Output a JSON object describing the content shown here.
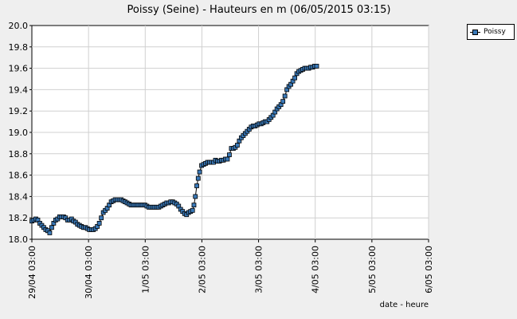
{
  "chart_data": {
    "type": "line",
    "title": "Poissy (Seine) - Hauteurs en m (06/05/2015 03:15)",
    "xlabel": "date - heure",
    "ylabel": "",
    "ylim": [
      18.0,
      20.0
    ],
    "y_ticks": [
      "18.0",
      "18.2",
      "18.4",
      "18.6",
      "18.8",
      "19.0",
      "19.2",
      "19.4",
      "19.6",
      "19.8",
      "20.0"
    ],
    "x_ticks": [
      "29/04 03:00",
      "30/04 03:00",
      "1/05 03:00",
      "2/05 03:00",
      "3/05 03:00",
      "4/05 03:00",
      "5/05 03:00",
      "6/05 03:00"
    ],
    "x_unit": "days since 29/04 03:00",
    "xlim": [
      0,
      7
    ],
    "grid": true,
    "legend_position": "top-right",
    "series_color": "#3a79b8",
    "series": [
      {
        "name": "Poissy",
        "points": [
          [
            0.0,
            18.17
          ],
          [
            0.035,
            18.18
          ],
          [
            0.07,
            18.19
          ],
          [
            0.105,
            18.18
          ],
          [
            0.14,
            18.15
          ],
          [
            0.175,
            18.13
          ],
          [
            0.21,
            18.11
          ],
          [
            0.245,
            18.09
          ],
          [
            0.28,
            18.08
          ],
          [
            0.315,
            18.06
          ],
          [
            0.35,
            18.11
          ],
          [
            0.385,
            18.15
          ],
          [
            0.42,
            18.18
          ],
          [
            0.455,
            18.19
          ],
          [
            0.49,
            18.21
          ],
          [
            0.525,
            18.21
          ],
          [
            0.56,
            18.21
          ],
          [
            0.595,
            18.2
          ],
          [
            0.63,
            18.18
          ],
          [
            0.665,
            18.18
          ],
          [
            0.7,
            18.19
          ],
          [
            0.735,
            18.17
          ],
          [
            0.77,
            18.16
          ],
          [
            0.805,
            18.14
          ],
          [
            0.84,
            18.13
          ],
          [
            0.875,
            18.12
          ],
          [
            0.91,
            18.11
          ],
          [
            0.945,
            18.11
          ],
          [
            0.98,
            18.1
          ],
          [
            1.015,
            18.09
          ],
          [
            1.05,
            18.09
          ],
          [
            1.085,
            18.09
          ],
          [
            1.12,
            18.1
          ],
          [
            1.155,
            18.12
          ],
          [
            1.19,
            18.15
          ],
          [
            1.225,
            18.2
          ],
          [
            1.26,
            18.25
          ],
          [
            1.295,
            18.27
          ],
          [
            1.33,
            18.29
          ],
          [
            1.365,
            18.32
          ],
          [
            1.4,
            18.35
          ],
          [
            1.435,
            18.36
          ],
          [
            1.47,
            18.37
          ],
          [
            1.505,
            18.37
          ],
          [
            1.54,
            18.37
          ],
          [
            1.575,
            18.37
          ],
          [
            1.61,
            18.36
          ],
          [
            1.645,
            18.35
          ],
          [
            1.68,
            18.34
          ],
          [
            1.715,
            18.33
          ],
          [
            1.75,
            18.32
          ],
          [
            1.785,
            18.32
          ],
          [
            1.82,
            18.32
          ],
          [
            1.855,
            18.32
          ],
          [
            1.89,
            18.32
          ],
          [
            1.925,
            18.32
          ],
          [
            1.96,
            18.32
          ],
          [
            1.995,
            18.32
          ],
          [
            2.03,
            18.31
          ],
          [
            2.065,
            18.3
          ],
          [
            2.1,
            18.3
          ],
          [
            2.135,
            18.3
          ],
          [
            2.17,
            18.3
          ],
          [
            2.205,
            18.3
          ],
          [
            2.24,
            18.3
          ],
          [
            2.275,
            18.31
          ],
          [
            2.31,
            18.32
          ],
          [
            2.345,
            18.33
          ],
          [
            2.38,
            18.34
          ],
          [
            2.415,
            18.34
          ],
          [
            2.45,
            18.35
          ],
          [
            2.485,
            18.35
          ],
          [
            2.52,
            18.34
          ],
          [
            2.555,
            18.33
          ],
          [
            2.59,
            18.31
          ],
          [
            2.625,
            18.28
          ],
          [
            2.66,
            18.26
          ],
          [
            2.695,
            18.24
          ],
          [
            2.73,
            18.23
          ],
          [
            2.765,
            18.25
          ],
          [
            2.8,
            18.26
          ],
          [
            2.835,
            18.27
          ],
          [
            2.86,
            18.32
          ],
          [
            2.885,
            18.4
          ],
          [
            2.91,
            18.5
          ],
          [
            2.935,
            18.57
          ],
          [
            2.96,
            18.63
          ],
          [
            2.995,
            18.69
          ],
          [
            3.03,
            18.7
          ],
          [
            3.065,
            18.71
          ],
          [
            3.1,
            18.72
          ],
          [
            3.135,
            18.72
          ],
          [
            3.17,
            18.72
          ],
          [
            3.205,
            18.72
          ],
          [
            3.24,
            18.74
          ],
          [
            3.275,
            18.73
          ],
          [
            3.31,
            18.73
          ],
          [
            3.345,
            18.74
          ],
          [
            3.38,
            18.74
          ],
          [
            3.415,
            18.75
          ],
          [
            3.45,
            18.75
          ],
          [
            3.485,
            18.79
          ],
          [
            3.52,
            18.85
          ],
          [
            3.555,
            18.85
          ],
          [
            3.59,
            18.86
          ],
          [
            3.625,
            18.88
          ],
          [
            3.66,
            18.92
          ],
          [
            3.695,
            18.95
          ],
          [
            3.73,
            18.97
          ],
          [
            3.765,
            18.99
          ],
          [
            3.8,
            19.01
          ],
          [
            3.835,
            19.03
          ],
          [
            3.87,
            19.05
          ],
          [
            3.905,
            19.06
          ],
          [
            3.94,
            19.06
          ],
          [
            3.975,
            19.07
          ],
          [
            4.01,
            19.08
          ],
          [
            4.045,
            19.08
          ],
          [
            4.08,
            19.09
          ],
          [
            4.115,
            19.1
          ],
          [
            4.15,
            19.1
          ],
          [
            4.185,
            19.12
          ],
          [
            4.22,
            19.14
          ],
          [
            4.255,
            19.16
          ],
          [
            4.29,
            19.19
          ],
          [
            4.325,
            19.22
          ],
          [
            4.36,
            19.24
          ],
          [
            4.395,
            19.26
          ],
          [
            4.43,
            19.29
          ],
          [
            4.465,
            19.34
          ],
          [
            4.5,
            19.4
          ],
          [
            4.535,
            19.43
          ],
          [
            4.57,
            19.45
          ],
          [
            4.605,
            19.48
          ],
          [
            4.64,
            19.51
          ],
          [
            4.675,
            19.55
          ],
          [
            4.71,
            19.57
          ],
          [
            4.745,
            19.58
          ],
          [
            4.78,
            19.59
          ],
          [
            4.815,
            19.6
          ],
          [
            4.85,
            19.6
          ],
          [
            4.885,
            19.6
          ],
          [
            4.92,
            19.61
          ],
          [
            4.955,
            19.61
          ],
          [
            4.99,
            19.62
          ],
          [
            5.025,
            19.62
          ]
        ]
      }
    ]
  }
}
